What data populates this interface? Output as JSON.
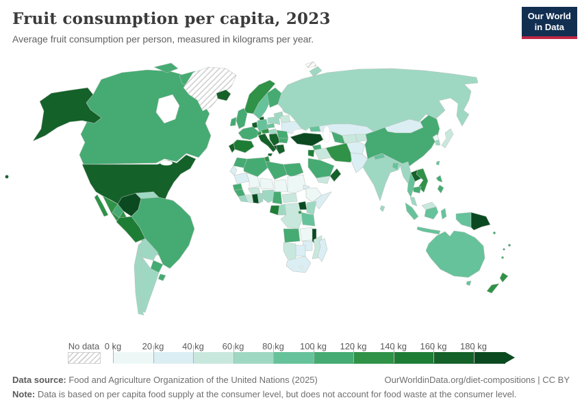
{
  "header": {
    "title": "Fruit consumption per capita, 2023",
    "subtitle": "Average fruit consumption per person, measured in kilograms per year.",
    "logo": {
      "line1": "Our World",
      "line2": "in Data"
    }
  },
  "colors": {
    "logo_navy": "#122f51",
    "logo_red": "#bf2745",
    "title_text": "#3b3b3b",
    "subtitle_text": "#616161",
    "legend_text": "#5b5b5b",
    "footer_text": "#6e6e6e",
    "border_stroke": "#b9c3bd"
  },
  "legend": {
    "no_data_label": "No data",
    "ticks": [
      "0 kg",
      "20 kg",
      "40 kg",
      "60 kg",
      "80 kg",
      "100 kg",
      "120 kg",
      "140 kg",
      "160 kg",
      "180 kg"
    ],
    "colors": [
      "#edf8f6",
      "#dbeef3",
      "#c9e8dd",
      "#9ed8c3",
      "#66c29a",
      "#45ab72",
      "#2f9247",
      "#1e7d35",
      "#146129",
      "#0b4a20"
    ],
    "hatch_color": "#cccccc"
  },
  "footer": {
    "datasource_label": "Data source:",
    "datasource_text": " Food and Agriculture Organization of the United Nations (2025)",
    "link_text": "OurWorldinData.org/diet-compositions | CC BY",
    "note_label": "Note:",
    "note_text": " Data is based on per capita food supply at the consumer level, but does not account for food waste at the consumer level."
  },
  "chart_data": {
    "type": "heatmap",
    "subtype": "world-choropleth-map",
    "title": "Fruit consumption per capita, 2023",
    "unit": "kilograms per person per year",
    "bin_edges_kg": [
      0,
      20,
      40,
      60,
      80,
      100,
      120,
      140,
      160,
      180
    ],
    "bin_labels": [
      "0-20 kg",
      "20-40 kg",
      "40-60 kg",
      "60-80 kg",
      "80-100 kg",
      "100-120 kg",
      "120-140 kg",
      "140-160 kg",
      "160-180 kg",
      "180+ kg"
    ],
    "open_ended_top": true,
    "legend_position": "bottom",
    "regions": [
      {
        "id": "united-states",
        "name": "United States",
        "bin": 8
      },
      {
        "id": "canada",
        "name": "Canada",
        "bin": 5
      },
      {
        "id": "greenland",
        "name": "Greenland",
        "bin": "nodata"
      },
      {
        "id": "svalbard",
        "name": "Svalbard",
        "bin": "nodata"
      },
      {
        "id": "iceland",
        "name": "Iceland",
        "bin": 8
      },
      {
        "id": "mexico",
        "name": "Mexico",
        "bin": 6
      },
      {
        "id": "guatemala",
        "name": "Guatemala",
        "bin": 4
      },
      {
        "id": "honduras",
        "name": "Honduras",
        "bin": 2
      },
      {
        "id": "nicaragua",
        "name": "Nicaragua",
        "bin": 2
      },
      {
        "id": "costa-rica",
        "name": "Costa Rica",
        "bin": 4
      },
      {
        "id": "panama",
        "name": "Panama",
        "bin": 3
      },
      {
        "id": "cuba",
        "name": "Cuba",
        "bin": 8
      },
      {
        "id": "dominican-republic",
        "name": "Dominican Republic",
        "bin": 7
      },
      {
        "id": "jamaica",
        "name": "Jamaica",
        "bin": 4
      },
      {
        "id": "colombia",
        "name": "Colombia",
        "bin": 9
      },
      {
        "id": "venezuela",
        "name": "Venezuela",
        "bin": 3
      },
      {
        "id": "guyana",
        "name": "Guyana",
        "bin": 9
      },
      {
        "id": "suriname",
        "name": "Suriname",
        "bin": 0
      },
      {
        "id": "french-guiana",
        "name": "French Guiana",
        "bin": "nodata"
      },
      {
        "id": "ecuador",
        "name": "Ecuador",
        "bin": 5
      },
      {
        "id": "peru",
        "name": "Peru",
        "bin": 7
      },
      {
        "id": "brazil",
        "name": "Brazil",
        "bin": 5
      },
      {
        "id": "bolivia",
        "name": "Bolivia",
        "bin": 3
      },
      {
        "id": "paraguay",
        "name": "Paraguay",
        "bin": 5
      },
      {
        "id": "uruguay",
        "name": "Uruguay",
        "bin": 5
      },
      {
        "id": "chile",
        "name": "Chile",
        "bin": 3
      },
      {
        "id": "argentina",
        "name": "Argentina",
        "bin": 3
      },
      {
        "id": "norway",
        "name": "Norway",
        "bin": 6
      },
      {
        "id": "sweden",
        "name": "Sweden",
        "bin": 4
      },
      {
        "id": "finland",
        "name": "Finland",
        "bin": 5
      },
      {
        "id": "denmark",
        "name": "Denmark",
        "bin": 8
      },
      {
        "id": "united-kingdom",
        "name": "United Kingdom",
        "bin": 5
      },
      {
        "id": "ireland",
        "name": "Ireland",
        "bin": 5
      },
      {
        "id": "netherlands",
        "name": "Netherlands/Belgium",
        "bin": 8
      },
      {
        "id": "germany",
        "name": "Germany",
        "bin": 4
      },
      {
        "id": "france",
        "name": "France",
        "bin": 5
      },
      {
        "id": "spain",
        "name": "Spain",
        "bin": 7
      },
      {
        "id": "portugal",
        "name": "Portugal",
        "bin": 8
      },
      {
        "id": "switzerland",
        "name": "Switzerland",
        "bin": 6
      },
      {
        "id": "austria",
        "name": "Austria",
        "bin": 6
      },
      {
        "id": "czechia",
        "name": "Czechia/Slovakia",
        "bin": 4
      },
      {
        "id": "poland",
        "name": "Poland",
        "bin": 3
      },
      {
        "id": "baltic-states",
        "name": "Baltic states",
        "bin": 3
      },
      {
        "id": "belarus",
        "name": "Belarus",
        "bin": 2
      },
      {
        "id": "ukraine",
        "name": "Ukraine",
        "bin": 1
      },
      {
        "id": "hungary",
        "name": "Hungary/Slovakia",
        "bin": 3
      },
      {
        "id": "romania",
        "name": "Romania",
        "bin": 5
      },
      {
        "id": "bulgaria",
        "name": "Bulgaria",
        "bin": 5
      },
      {
        "id": "western-balkans",
        "name": "Western Balkans",
        "bin": 8
      },
      {
        "id": "albania",
        "name": "Albania",
        "bin": 9
      },
      {
        "id": "greece",
        "name": "Greece",
        "bin": 8
      },
      {
        "id": "italy",
        "name": "Italy",
        "bin": 8
      },
      {
        "id": "sicily",
        "name": "Italy (Sicily)",
        "bin": 8
      },
      {
        "id": "russia",
        "name": "Russia",
        "bin": 3
      },
      {
        "id": "novaya-zemlya",
        "name": "Russia (Novaya Zemlya)",
        "bin": 3
      },
      {
        "id": "kazakhstan",
        "name": "Kazakhstan",
        "bin": 1
      },
      {
        "id": "caucasus",
        "name": "Georgia/Azerbaijan",
        "bin": 4
      },
      {
        "id": "turkey",
        "name": "Turkey",
        "bin": 9
      },
      {
        "id": "syria",
        "name": "Syria",
        "bin": 5
      },
      {
        "id": "israel-jordan",
        "name": "Israel/Jordan",
        "bin": 7
      },
      {
        "id": "iraq",
        "name": "Iraq",
        "bin": 2
      },
      {
        "id": "iran",
        "name": "Iran",
        "bin": 6
      },
      {
        "id": "saudi-arabia",
        "name": "Saudi Arabia",
        "bin": 5
      },
      {
        "id": "yemen",
        "name": "Yemen",
        "bin": 2
      },
      {
        "id": "oman",
        "name": "Oman",
        "bin": 8
      },
      {
        "id": "turkmenistan",
        "name": "Turkmenistan",
        "bin": 5
      },
      {
        "id": "uzbekistan",
        "name": "Uzbekistan",
        "bin": 2
      },
      {
        "id": "kyrgyzstan-tajikistan",
        "name": "Kyrgyzstan/Tajikistan",
        "bin": 2
      },
      {
        "id": "afghanistan",
        "name": "Afghanistan",
        "bin": 1
      },
      {
        "id": "pakistan",
        "name": "Pakistan",
        "bin": 1
      },
      {
        "id": "india",
        "name": "India",
        "bin": 3
      },
      {
        "id": "nepal",
        "name": "Nepal",
        "bin": 4
      },
      {
        "id": "bangladesh",
        "name": "Bangladesh",
        "bin": 4
      },
      {
        "id": "sri-lanka",
        "name": "Sri Lanka",
        "bin": 3
      },
      {
        "id": "china",
        "name": "China",
        "bin": 5
      },
      {
        "id": "mongolia",
        "name": "Mongolia",
        "bin": 1
      },
      {
        "id": "north-korea",
        "name": "North Korea",
        "bin": 0
      },
      {
        "id": "south-korea",
        "name": "South Korea",
        "bin": 3
      },
      {
        "id": "japan",
        "name": "Japan",
        "bin": 2
      },
      {
        "id": "taiwan",
        "name": "Taiwan",
        "bin": 4
      },
      {
        "id": "myanmar",
        "name": "Myanmar",
        "bin": 3
      },
      {
        "id": "thailand",
        "name": "Thailand",
        "bin": 4
      },
      {
        "id": "laos",
        "name": "Laos",
        "bin": 8
      },
      {
        "id": "vietnam",
        "name": "Vietnam",
        "bin": 6
      },
      {
        "id": "cambodia",
        "name": "Cambodia",
        "bin": 5
      },
      {
        "id": "peninsular-malaysia",
        "name": "Malaysia (peninsular)",
        "bin": 3
      },
      {
        "id": "east-malaysia",
        "name": "Malaysia (Borneo)",
        "bin": 2
      },
      {
        "id": "indonesia",
        "name": "Indonesia",
        "bin": 4
      },
      {
        "id": "philippines",
        "name": "Philippines",
        "bin": 5
      },
      {
        "id": "papua-new-guinea",
        "name": "Papua New Guinea",
        "bin": 9
      },
      {
        "id": "morocco",
        "name": "Morocco",
        "bin": 5
      },
      {
        "id": "western-sahara",
        "name": "Western Sahara",
        "bin": 1
      },
      {
        "id": "algeria",
        "name": "Algeria",
        "bin": 5
      },
      {
        "id": "tunisia",
        "name": "Tunisia",
        "bin": 6
      },
      {
        "id": "libya",
        "name": "Libya",
        "bin": 5
      },
      {
        "id": "egypt",
        "name": "Egypt",
        "bin": 5
      },
      {
        "id": "mauritania",
        "name": "Mauritania",
        "bin": 1
      },
      {
        "id": "mali",
        "name": "Mali",
        "bin": 0
      },
      {
        "id": "niger",
        "name": "Niger",
        "bin": 0
      },
      {
        "id": "chad",
        "name": "Chad",
        "bin": 0
      },
      {
        "id": "sudan",
        "name": "Sudan",
        "bin": 0
      },
      {
        "id": "eritrea",
        "name": "Eritrea/Djibouti",
        "bin": 1
      },
      {
        "id": "ethiopia",
        "name": "Ethiopia",
        "bin": 0
      },
      {
        "id": "somalia",
        "name": "Somalia",
        "bin": 1
      },
      {
        "id": "senegal",
        "name": "Senegal/Gambia",
        "bin": 5
      },
      {
        "id": "guinea",
        "name": "Guinea",
        "bin": 5
      },
      {
        "id": "sierra-leone",
        "name": "Sierra Leone/Liberia",
        "bin": 3
      },
      {
        "id": "cote-divoire",
        "name": "Cote d'Ivoire",
        "bin": 2
      },
      {
        "id": "ghana",
        "name": "Ghana",
        "bin": 9
      },
      {
        "id": "togo-benin",
        "name": "Togo/Benin",
        "bin": 3
      },
      {
        "id": "burkina-faso",
        "name": "Burkina Faso",
        "bin": 2
      },
      {
        "id": "nigeria",
        "name": "Nigeria",
        "bin": 3
      },
      {
        "id": "cameroon",
        "name": "Cameroon",
        "bin": 5
      },
      {
        "id": "central-african-republic",
        "name": "Central African Republic",
        "bin": 2
      },
      {
        "id": "gabon",
        "name": "Gabon",
        "bin": 7
      },
      {
        "id": "congo",
        "name": "Congo",
        "bin": 3
      },
      {
        "id": "democratic-republic-of-congo",
        "name": "Democratic Republic of Congo",
        "bin": 2
      },
      {
        "id": "uganda",
        "name": "Uganda",
        "bin": 9
      },
      {
        "id": "kenya",
        "name": "Kenya",
        "bin": 3
      },
      {
        "id": "rwanda-burundi",
        "name": "Rwanda/Burundi",
        "bin": 6
      },
      {
        "id": "tanzania",
        "name": "Tanzania",
        "bin": 4
      },
      {
        "id": "angola",
        "name": "Angola",
        "bin": 5
      },
      {
        "id": "zambia",
        "name": "Zambia",
        "bin": 0
      },
      {
        "id": "malawi",
        "name": "Malawi",
        "bin": 9
      },
      {
        "id": "mozambique",
        "name": "Mozambique",
        "bin": 2
      },
      {
        "id": "zimbabwe",
        "name": "Zimbabwe",
        "bin": 1
      },
      {
        "id": "botswana",
        "name": "Botswana",
        "bin": 1
      },
      {
        "id": "namibia",
        "name": "Namibia",
        "bin": 2
      },
      {
        "id": "south-africa",
        "name": "South Africa",
        "bin": 1
      },
      {
        "id": "lesotho",
        "name": "Lesotho",
        "bin": 0
      },
      {
        "id": "madagascar",
        "name": "Madagascar",
        "bin": 1
      },
      {
        "id": "australia",
        "name": "Australia",
        "bin": 4
      },
      {
        "id": "tasmania",
        "name": "Australia (Tasmania)",
        "bin": 4
      },
      {
        "id": "new-zealand",
        "name": "New Zealand",
        "bin": 6
      },
      {
        "id": "fiji",
        "name": "Fiji",
        "bin": 5
      },
      {
        "id": "vanuatu",
        "name": "Vanuatu",
        "bin": 5
      },
      {
        "id": "solomon-islands",
        "name": "Solomon Islands",
        "bin": 5
      },
      {
        "id": "new-caledonia",
        "name": "New Caledonia",
        "bin": 5
      },
      {
        "id": "hawaii",
        "name": "United States (Hawaii)",
        "bin": 8
      }
    ]
  }
}
